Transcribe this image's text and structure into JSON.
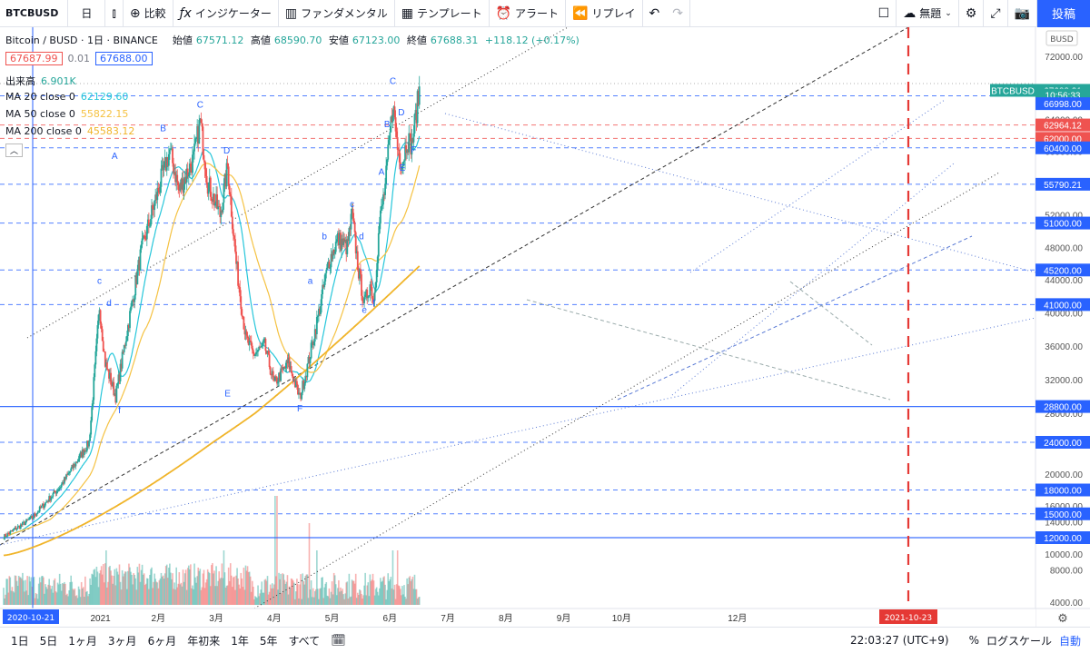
{
  "toolbar": {
    "symbol": "BTCBUSD",
    "interval": "日",
    "compare": "比較",
    "indicators": "インジケーター",
    "fundamentals": "ファンダメンタル",
    "templates": "テンプレート",
    "alert": "アラート",
    "replay": "リプレイ",
    "layout_name": "無題",
    "publish": "投稿"
  },
  "legend": {
    "title": "Bitcoin / BUSD · 1日 · BINANCE",
    "open_label": "始値",
    "open": "67571.12",
    "high_label": "高値",
    "high": "68590.70",
    "low_label": "安値",
    "low": "67123.00",
    "close_label": "終値",
    "close": "67688.31",
    "change": "+118.12 (+0.17%)",
    "bid": "67687.99",
    "spread": "0.01",
    "ask": "67688.00",
    "volume_label": "出来高",
    "volume": "6.901K",
    "ma20_label": "MA 20 close 0",
    "ma20": "62129.60",
    "ma50_label": "MA 50 close 0",
    "ma50": "55822.15",
    "ma200_label": "MA 200 close 0",
    "ma200": "45583.12"
  },
  "colors": {
    "up": "#26a69a",
    "down": "#ef5350",
    "ma20": "#26c6da",
    "ma50": "#f5c242",
    "ma200": "#f0b429",
    "hline": "#2962ff",
    "accent": "#2962ff",
    "crosshair": "#e53935"
  },
  "chart_data": {
    "type": "candlestick",
    "price_axis": {
      "currency_badge": "BUSD",
      "ticks": [
        "72000.00",
        "68000.00",
        "64000.00",
        "60000.00",
        "56000.00",
        "52000.00",
        "48000.00",
        "44000.00",
        "40000.00",
        "36000.00",
        "32000.00",
        "28000.00",
        "24000.00",
        "20000.00",
        "18000.00",
        "16000.00",
        "14000.00",
        "12000.00",
        "10000.00",
        "8000.00",
        "4000.00"
      ],
      "tick_values": [
        72000,
        68000,
        64000,
        60000,
        56000,
        52000,
        48000,
        44000,
        40000,
        36000,
        32000,
        28000,
        24000,
        20000,
        18000,
        16000,
        14000,
        12000,
        10000,
        8000,
        4000
      ],
      "labels": [
        {
          "text": "BTCBUSD",
          "value": 67688,
          "kind": "symbol"
        },
        {
          "text": "67688.31",
          "value": 67688,
          "kind": "last"
        },
        {
          "text": "10:56:33",
          "value": 67100,
          "kind": "countdown"
        },
        {
          "text": "66998.00",
          "value": 66000,
          "kind": "level"
        },
        {
          "text": "62964.12",
          "value": 63300,
          "kind": "red"
        },
        {
          "text": "62000.00",
          "value": 61600,
          "kind": "red"
        },
        {
          "text": "60400.00",
          "value": 60400,
          "kind": "level"
        },
        {
          "text": "55790.21",
          "value": 55790,
          "kind": "level"
        },
        {
          "text": "51000.00",
          "value": 51000,
          "kind": "level"
        },
        {
          "text": "45200.00",
          "value": 45200,
          "kind": "level"
        },
        {
          "text": "41000.00",
          "value": 41000,
          "kind": "level"
        },
        {
          "text": "28800.00",
          "value": 28800,
          "kind": "solid"
        },
        {
          "text": "24000.00",
          "value": 24000,
          "kind": "level"
        },
        {
          "text": "18000.00",
          "value": 18000,
          "kind": "level"
        },
        {
          "text": "15000.00",
          "value": 15000,
          "kind": "level"
        },
        {
          "text": "12000.00",
          "value": 12000,
          "kind": "solid"
        }
      ]
    },
    "time_axis": {
      "labels": [
        "12月",
        "2021",
        "2月",
        "3月",
        "4月",
        "5月",
        "6月",
        "7月",
        "8月",
        "9月",
        "10月",
        "12月"
      ],
      "label_days": [
        41,
        102,
        163,
        224,
        285,
        346,
        407,
        468,
        529,
        590,
        651,
        773
      ],
      "start_label": "2020-10-21",
      "cursor_label": "2021-10-23"
    },
    "horizontal_levels": [
      66998,
      63300,
      61600,
      60400,
      55790,
      51000,
      45200,
      41000,
      28800,
      24000,
      18000,
      15000,
      12000
    ],
    "wave_labels": [
      {
        "t": "A",
        "day": 117,
        "p": 59000
      },
      {
        "t": "B",
        "day": 168,
        "p": 62500
      },
      {
        "t": "C",
        "day": 207,
        "p": 65500
      },
      {
        "t": "D",
        "day": 235,
        "p": 59700
      },
      {
        "t": "E",
        "day": 236,
        "p": 30000
      },
      {
        "t": "F",
        "day": 312,
        "p": 28200
      },
      {
        "t": "c",
        "day": 101,
        "p": 43500
      },
      {
        "t": "d",
        "day": 111,
        "p": 40800
      },
      {
        "t": "f",
        "day": 122,
        "p": 28000
      },
      {
        "t": "a",
        "day": 323,
        "p": 43500
      },
      {
        "t": "b",
        "day": 338,
        "p": 49000
      },
      {
        "t": "c",
        "day": 367,
        "p": 53000
      },
      {
        "t": "d",
        "day": 377,
        "p": 49000
      },
      {
        "t": "e",
        "day": 380,
        "p": 40000
      },
      {
        "t": "f",
        "day": 390,
        "p": 40800
      },
      {
        "t": "A",
        "day": 398,
        "p": 57000
      },
      {
        "t": "B",
        "day": 404,
        "p": 63000
      },
      {
        "t": "C",
        "day": 410,
        "p": 68500
      },
      {
        "t": "D",
        "day": 419,
        "p": 64500
      },
      {
        "t": "E",
        "day": 420,
        "p": 57500
      },
      {
        "t": "F",
        "day": 432,
        "p": 59800
      }
    ]
  },
  "bottom": {
    "ranges": [
      "1日",
      "5日",
      "1ヶ月",
      "3ヶ月",
      "6ヶ月",
      "年初来",
      "1年",
      "5年",
      "すべて"
    ],
    "time": "22:03:27 (UTC+9)",
    "percent": "%",
    "log": "ログスケール",
    "auto": "自動"
  }
}
